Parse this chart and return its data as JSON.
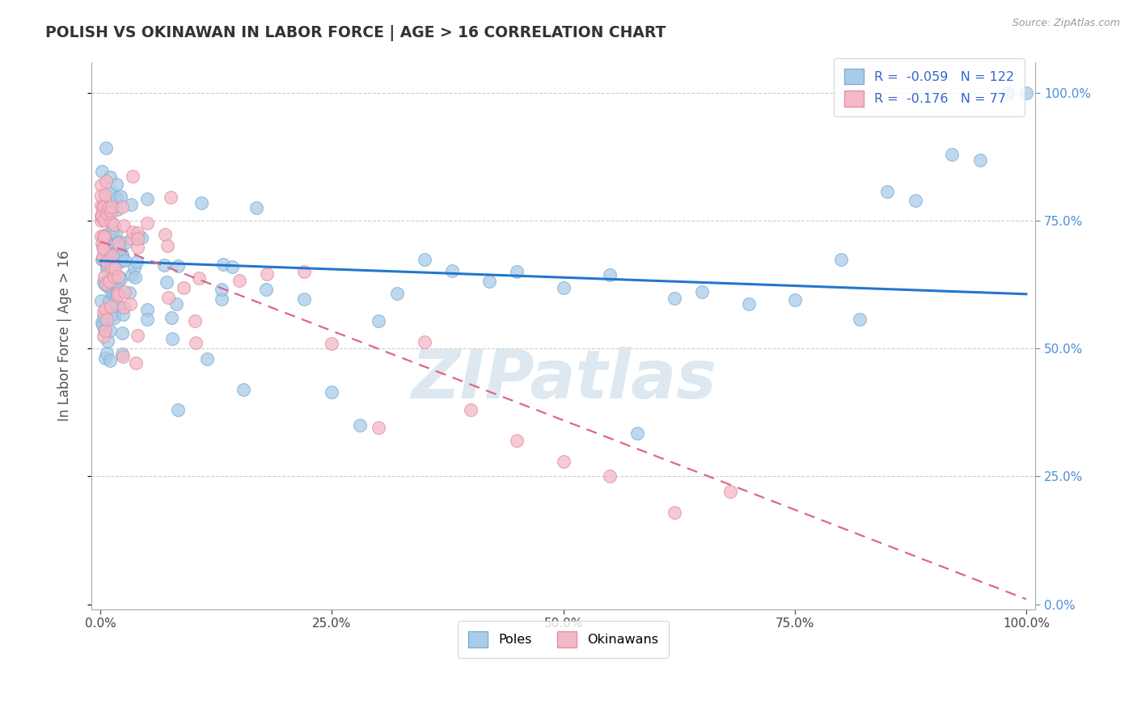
{
  "title": "POLISH VS OKINAWAN IN LABOR FORCE | AGE > 16 CORRELATION CHART",
  "source_text": "Source: ZipAtlas.com",
  "ylabel": "In Labor Force | Age > 16",
  "xlim": [
    0.0,
    1.0
  ],
  "ylim": [
    0.0,
    1.0
  ],
  "poles_color": "#aacce8",
  "poles_edge_color": "#7aaed4",
  "okinawans_color": "#f4b8c8",
  "okinawans_edge_color": "#e090a0",
  "trend_blue": "#2277cc",
  "trend_pink": "#dd6688",
  "R_poles": -0.059,
  "N_poles": 122,
  "R_okinawans": -0.176,
  "N_okinawans": 77,
  "background_color": "#ffffff",
  "grid_color": "#cccccc",
  "title_color": "#333333",
  "label_color": "#555555",
  "watermark_color": "#dde8f0",
  "legend_label1": "Poles",
  "legend_label2": "Okinawans",
  "right_tick_color": "#4a90d9"
}
